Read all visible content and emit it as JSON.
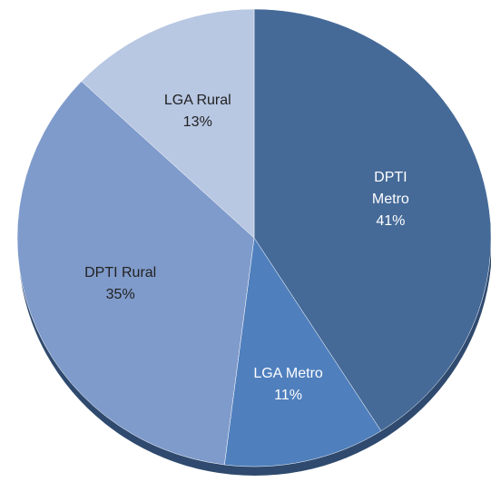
{
  "chart_data": {
    "type": "pie",
    "categories": [
      "DPTI Metro",
      "LGA Metro",
      "DPTI Rural",
      "LGA Rural"
    ],
    "values": [
      41,
      11,
      35,
      13
    ],
    "value_labels": [
      "41%",
      "11%",
      "35%",
      "13%"
    ],
    "colors": [
      "#456a98",
      "#4f7fbd",
      "#7f9bcb",
      "#b8c7e2"
    ]
  }
}
